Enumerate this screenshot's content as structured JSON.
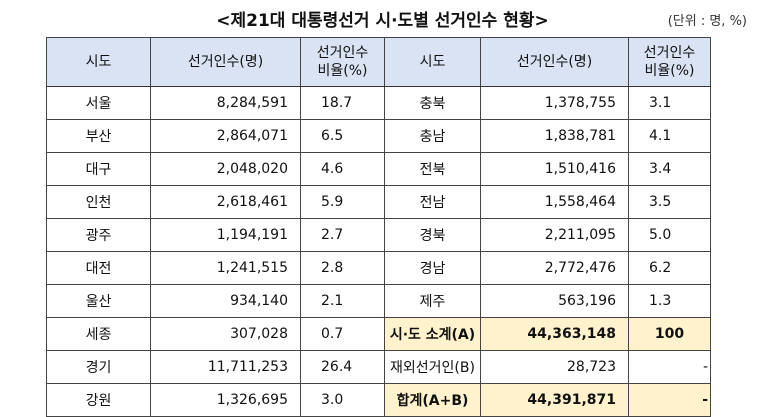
{
  "title": "<제21대 대통령선거 시·도별 선거인수 현황>",
  "unit": "(단위 : 명, %)",
  "headers": {
    "region": "시도",
    "voters": "선거인수(명)",
    "rate_line1": "선거인수",
    "rate_line2": "비율(%)"
  },
  "rows": [
    {
      "l_region": "서울",
      "l_voters": "8,284,591",
      "l_rate": "18.7",
      "r_region": "충북",
      "r_voters": "1,378,755",
      "r_rate": "3.1"
    },
    {
      "l_region": "부산",
      "l_voters": "2,864,071",
      "l_rate": "6.5",
      "r_region": "충남",
      "r_voters": "1,838,781",
      "r_rate": "4.1"
    },
    {
      "l_region": "대구",
      "l_voters": "2,048,020",
      "l_rate": "4.6",
      "r_region": "전북",
      "r_voters": "1,510,416",
      "r_rate": "3.4"
    },
    {
      "l_region": "인천",
      "l_voters": "2,618,461",
      "l_rate": "5.9",
      "r_region": "전남",
      "r_voters": "1,558,464",
      "r_rate": "3.5"
    },
    {
      "l_region": "광주",
      "l_voters": "1,194,191",
      "l_rate": "2.7",
      "r_region": "경북",
      "r_voters": "2,211,095",
      "r_rate": "5.0"
    },
    {
      "l_region": "대전",
      "l_voters": "1,241,515",
      "l_rate": "2.8",
      "r_region": "경남",
      "r_voters": "2,772,476",
      "r_rate": "6.2"
    },
    {
      "l_region": "울산",
      "l_voters": "934,140",
      "l_rate": "2.1",
      "r_region": "제주",
      "r_voters": "563,196",
      "r_rate": "1.3"
    },
    {
      "l_region": "세종",
      "l_voters": "307,028",
      "l_rate": "0.7",
      "r_region": "시·도 소계(A)",
      "r_voters": "44,363,148",
      "r_rate": "100"
    },
    {
      "l_region": "경기",
      "l_voters": "11,711,253",
      "l_rate": "26.4",
      "r_region": "재외선거인(B)",
      "r_voters": "28,723",
      "r_rate": "-"
    },
    {
      "l_region": "강원",
      "l_voters": "1,326,695",
      "l_rate": "3.0",
      "r_region": "합계(A+B)",
      "r_voters": "44,391,871",
      "r_rate": "-"
    }
  ]
}
